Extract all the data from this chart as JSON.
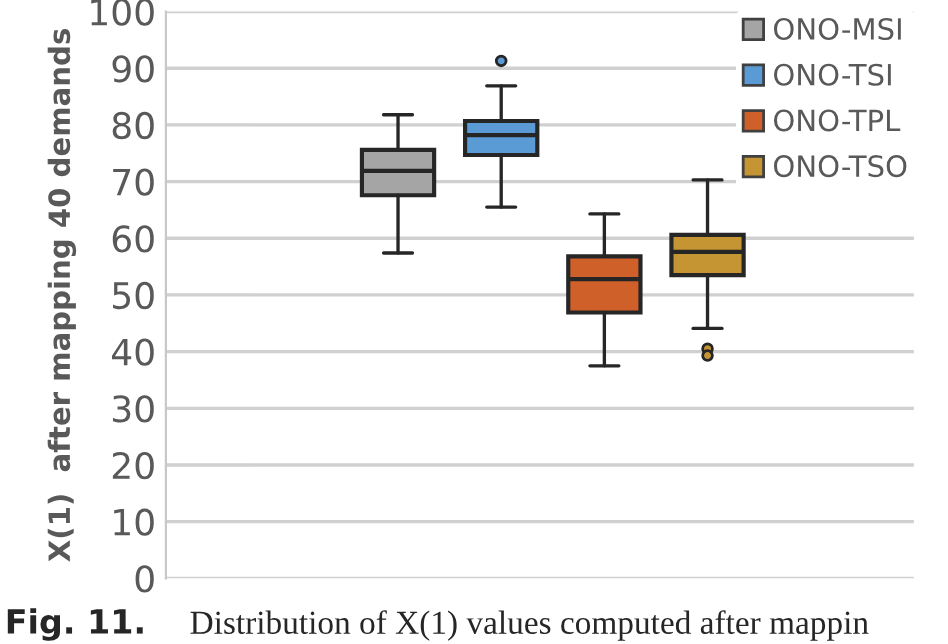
{
  "chart_data": {
    "type": "box",
    "ylabel": "X(1)  after mapping 40 demands",
    "annotations": [
      "Fig. 11.",
      "Distribution of X(1) values computed after mappin"
    ],
    "categories": [
      null
    ],
    "ylim": [
      0,
      100
    ],
    "yticks": [
      0,
      10,
      20,
      30,
      40,
      50,
      60,
      70,
      80,
      90,
      100
    ],
    "grid": "y",
    "legend": "top right",
    "tick_labels": "y",
    "series": [
      {
        "name": "ONO-MSI",
        "color": "#a5a5a5",
        "boxes": [
          {
            "low": 57.4,
            "q1": 67.6,
            "median": 71.9,
            "q3": 75.6,
            "high": 81.8
          }
        ]
      },
      {
        "name": "ONO-TSI",
        "color": "#5b9bd5",
        "boxes": [
          {
            "low": 65.5,
            "q1": 74.7,
            "median": 78.2,
            "q3": 80.7,
            "high": 86.9,
            "outliers": [
              91.3
            ]
          }
        ]
      },
      {
        "name": "ONO-TPL",
        "color": "#d0602a",
        "boxes": [
          {
            "low": 37.5,
            "q1": 46.9,
            "median": 52.8,
            "q3": 56.8,
            "high": 64.3
          }
        ]
      },
      {
        "name": "ONO-TSO",
        "color": "#c49532",
        "boxes": [
          {
            "low": 44.1,
            "q1": 53.5,
            "median": 57.6,
            "q3": 60.6,
            "high": 70.3,
            "outliers": [
              40.5,
              39.3
            ]
          }
        ]
      }
    ]
  }
}
